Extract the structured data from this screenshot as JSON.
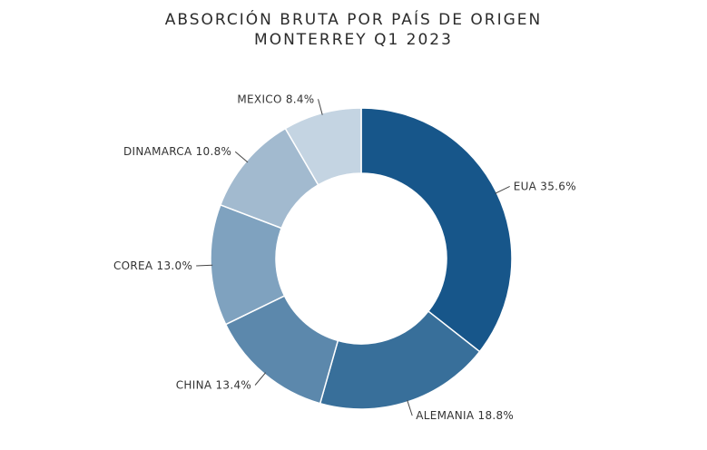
{
  "chart_data": {
    "type": "pie",
    "donut": true,
    "title_lines": [
      "ABSORCIÓN BRUTA POR PAÍS DE ORIGEN",
      "MONTERREY Q1 2023"
    ],
    "slices": [
      {
        "label": "EUA",
        "value": 35.6,
        "display": "EUA 35.6%",
        "color": "#17568a"
      },
      {
        "label": "ALEMANIA",
        "value": 18.8,
        "display": "ALEMANIA 18.8%",
        "color": "#386f9a"
      },
      {
        "label": "CHINA",
        "value": 13.4,
        "display": "CHINA 13.4%",
        "color": "#5c88ac"
      },
      {
        "label": "COREA",
        "value": 13.0,
        "display": "COREA 13.0%",
        "color": "#7fa2bf"
      },
      {
        "label": "DINAMARCA",
        "value": 10.8,
        "display": "DINAMARCA 10.8%",
        "color": "#a2bacf"
      },
      {
        "label": "MEXICO",
        "value": 8.4,
        "display": "MEXICO 8.4%",
        "color": "#c4d4e2"
      }
    ],
    "legend": "none"
  }
}
